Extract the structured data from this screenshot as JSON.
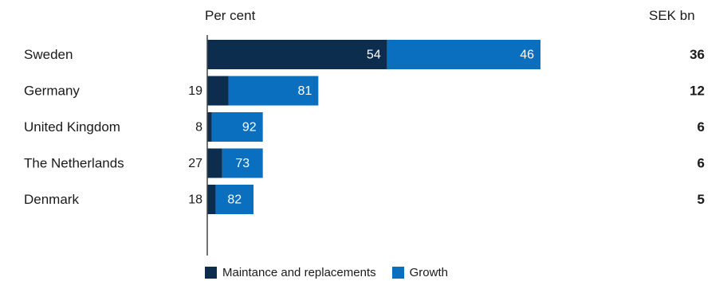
{
  "chart_data": {
    "type": "bar",
    "orientation": "horizontal",
    "stacked": true,
    "left_header": "Per cent",
    "right_header": "SEK bn",
    "categories": [
      "Sweden",
      "Germany",
      "United Kingdom",
      "The Netherlands",
      "Denmark"
    ],
    "series": [
      {
        "name": "Maintance and replacements",
        "values": [
          54,
          19,
          8,
          27,
          18
        ],
        "color": "#0d2d4f"
      },
      {
        "name": "Growth",
        "values": [
          46,
          81,
          92,
          73,
          82
        ],
        "color": "#0a6fbf"
      }
    ],
    "totals_sek_bn": [
      36,
      12,
      6,
      6,
      5
    ],
    "legend_position": "bottom"
  }
}
